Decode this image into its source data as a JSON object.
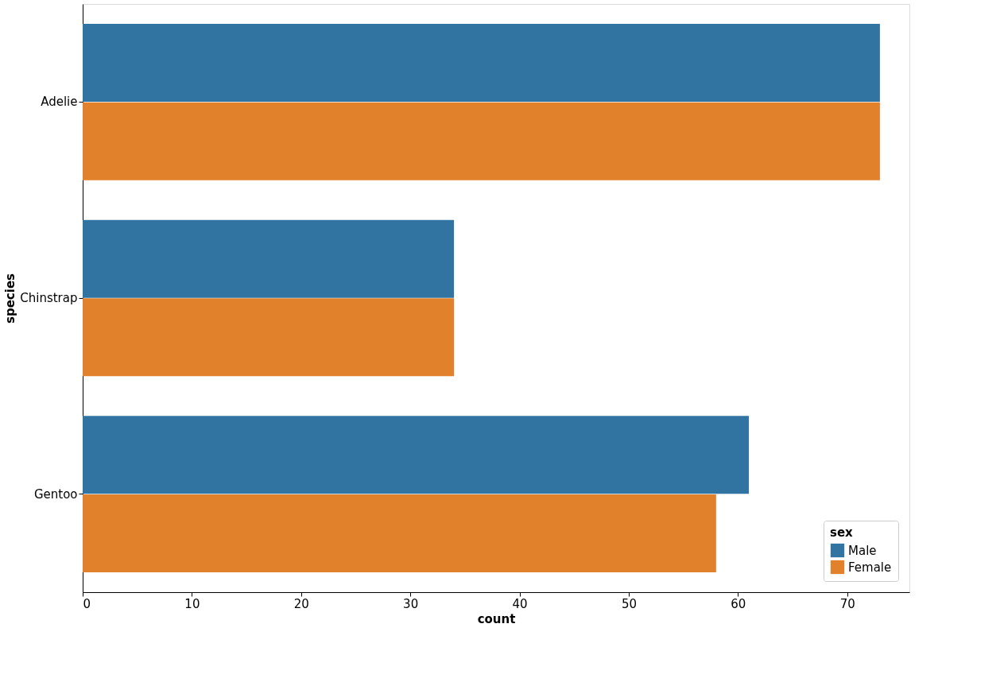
{
  "chart_data": {
    "type": "bar",
    "orientation": "horizontal",
    "xlabel": "count",
    "ylabel": "species",
    "legend_title": "sex",
    "categories": [
      "Adelie",
      "Chinstrap",
      "Gentoo"
    ],
    "series": [
      {
        "name": "Male",
        "color": "#3274a1",
        "values": [
          73,
          34,
          61
        ]
      },
      {
        "name": "Female",
        "color": "#e1812c",
        "values": [
          73,
          34,
          58
        ]
      }
    ],
    "xlim": [
      0,
      75.7
    ],
    "xticks": [
      0,
      10,
      20,
      30,
      40,
      50,
      60,
      70
    ],
    "grid": false,
    "legend": "bottom right"
  }
}
